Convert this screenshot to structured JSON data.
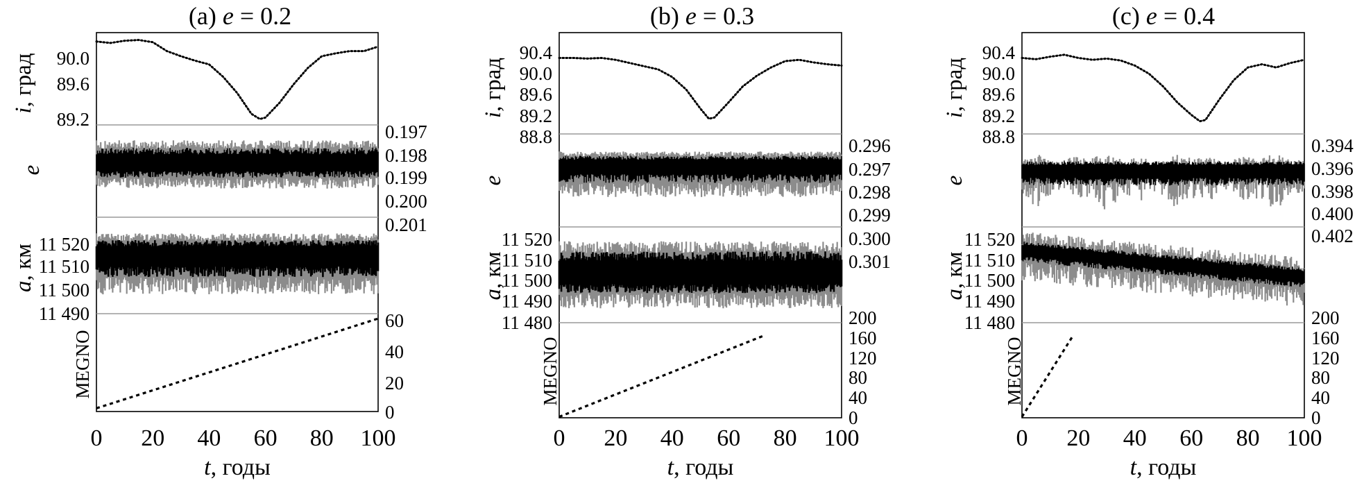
{
  "colors": {
    "ink": "#000000",
    "divider": "#9a9a9a",
    "light_trace": "#8c8c8c"
  },
  "chart_data": [
    {
      "type": "line",
      "title": "(a) e = 0.2",
      "title_parts": {
        "prefix": "(a) ",
        "var": "e",
        "suffix": " = 0.2"
      },
      "x": {
        "label_var": "t",
        "label_unit": ", годы",
        "ticks": [
          "0",
          "20",
          "40",
          "60",
          "80",
          "100"
        ],
        "range": [
          0,
          100
        ]
      },
      "panels": [
        {
          "id": "inclination",
          "ylabel_var": "i",
          "ylabel_unit": ", град",
          "tick_side": "left",
          "ticks": [
            "89.2",
            "89.6",
            "90.0"
          ],
          "ylim": [
            89.05,
            90.3
          ],
          "series": [
            {
              "style": "dotted-curve",
              "x": [
                0,
                5,
                10,
                15,
                20,
                25,
                30,
                35,
                40,
                45,
                50,
                55,
                58,
                60,
                65,
                70,
                75,
                80,
                85,
                90,
                95,
                100
              ],
              "y": [
                90.18,
                90.16,
                90.19,
                90.2,
                90.17,
                90.05,
                89.98,
                89.92,
                89.87,
                89.7,
                89.48,
                89.2,
                89.13,
                89.15,
                89.35,
                89.6,
                89.82,
                89.98,
                90.02,
                90.05,
                90.05,
                90.11
              ]
            }
          ]
        },
        {
          "id": "eccentricity",
          "ylabel_var": "e",
          "ylabel_unit": "",
          "tick_side": "right",
          "ticks": [
            "0.197",
            "0.198",
            "0.199",
            "0.200",
            "0.201"
          ],
          "ylim": [
            0.1969,
            0.2011
          ],
          "series": [
            {
              "style": "oscillation",
              "center": 0.1993,
              "upper": 0.2004,
              "lower": 0.1982,
              "period_years": 1.3
            }
          ]
        },
        {
          "id": "semimajor-axis",
          "ylabel_var": "a",
          "ylabel_unit": ", км",
          "tick_side": "left",
          "ticks": [
            "11 490",
            "11 500",
            "11 510",
            "11 520"
          ],
          "ylim": [
            11490,
            11520
          ],
          "series": [
            {
              "style": "band",
              "center": 11508,
              "upper": 11515,
              "lower": 11496
            }
          ]
        },
        {
          "id": "megno",
          "ylabel_var": "MEGNO",
          "ylabel_unit": "",
          "tick_side": "right",
          "ticks": [
            "0",
            "20",
            "40",
            "60"
          ],
          "ylim": [
            0,
            60
          ],
          "series": [
            {
              "style": "dashed",
              "x": [
                0,
                100
              ],
              "y": [
                2,
                57
              ]
            }
          ]
        }
      ]
    },
    {
      "type": "line",
      "title": "(b) e = 0.3",
      "title_parts": {
        "prefix": "(b) ",
        "var": "e",
        "suffix": " = 0.3"
      },
      "x": {
        "label_var": "t",
        "label_unit": ", годы",
        "ticks": [
          "0",
          "20",
          "40",
          "60",
          "80",
          "100"
        ],
        "range": [
          0,
          100
        ]
      },
      "panels": [
        {
          "id": "inclination",
          "ylabel_var": "i",
          "ylabel_unit": ", град",
          "tick_side": "left",
          "ticks": [
            "88.8",
            "89.2",
            "89.6",
            "90.0",
            "90.4"
          ],
          "ylim": [
            88.8,
            90.4
          ],
          "series": [
            {
              "style": "dotted-curve",
              "x": [
                0,
                5,
                10,
                15,
                20,
                25,
                30,
                35,
                40,
                45,
                50,
                53,
                55,
                60,
                65,
                70,
                75,
                80,
                85,
                90,
                95,
                100
              ],
              "y": [
                90.0,
                90.0,
                89.99,
                90.0,
                89.97,
                89.92,
                89.87,
                89.82,
                89.7,
                89.5,
                89.2,
                89.04,
                89.06,
                89.3,
                89.55,
                89.72,
                89.85,
                89.95,
                89.97,
                89.93,
                89.9,
                89.88
              ]
            }
          ]
        },
        {
          "id": "eccentricity",
          "ylabel_var": "e",
          "ylabel_unit": "",
          "tick_side": "right",
          "ticks": [
            "0.296",
            "0.297",
            "0.298",
            "0.299",
            "0.300",
            "0.301"
          ],
          "ylim": [
            0.2957,
            0.301
          ],
          "series": [
            {
              "style": "oscillation",
              "center": 0.2992,
              "upper": 0.3,
              "lower": 0.2974,
              "period_years": 1.1
            }
          ]
        },
        {
          "id": "semimajor-axis",
          "ylabel_var": "a",
          "ylabel_unit": ", км",
          "tick_side": "left",
          "ticks": [
            "11 480",
            "11 490",
            "11 500",
            "11 510",
            "11 520"
          ],
          "ylim": [
            11480,
            11520
          ],
          "series": [
            {
              "style": "band",
              "center": 11500,
              "upper": 11514,
              "lower": 11486
            }
          ]
        },
        {
          "id": "megno",
          "ylabel_var": "MEGNO",
          "ylabel_unit": "",
          "tick_side": "right",
          "ticks": [
            "0",
            "40",
            "80",
            "120",
            "160",
            "200"
          ],
          "ylim": [
            0,
            200
          ],
          "series": [
            {
              "style": "dashed",
              "x": [
                0,
                73
              ],
              "y": [
                2,
                174
              ]
            }
          ]
        }
      ]
    },
    {
      "type": "line",
      "title": "(c) e = 0.4",
      "title_parts": {
        "prefix": "(c) ",
        "var": "e",
        "suffix": " = 0.4"
      },
      "x": {
        "label_var": "t",
        "label_unit": ", годы",
        "ticks": [
          "0",
          "20",
          "40",
          "60",
          "80",
          "100"
        ],
        "range": [
          0,
          100
        ]
      },
      "panels": [
        {
          "id": "inclination",
          "ylabel_var": "i",
          "ylabel_unit": ", град",
          "tick_side": "left",
          "ticks": [
            "88.8",
            "89.2",
            "89.6",
            "90.0",
            "90.4"
          ],
          "ylim": [
            88.8,
            90.4
          ],
          "series": [
            {
              "style": "dotted-curve",
              "x": [
                0,
                5,
                10,
                15,
                20,
                25,
                30,
                35,
                40,
                45,
                50,
                55,
                60,
                63,
                65,
                70,
                75,
                80,
                85,
                90,
                95,
                100
              ],
              "y": [
                90.0,
                89.98,
                90.02,
                90.05,
                90.0,
                89.97,
                89.99,
                89.96,
                89.88,
                89.75,
                89.55,
                89.3,
                89.1,
                89.0,
                89.02,
                89.35,
                89.65,
                89.85,
                89.9,
                89.85,
                89.92,
                89.97
              ]
            }
          ]
        },
        {
          "id": "eccentricity",
          "ylabel_var": "e",
          "ylabel_unit": "",
          "tick_side": "right",
          "ticks": [
            "0.394",
            "0.396",
            "0.398",
            "0.400",
            "0.402"
          ],
          "ylim": [
            0.3935,
            0.4022
          ],
          "series": [
            {
              "style": "irregular",
              "center": 0.3988,
              "upper": 0.4,
              "lower": 0.3962
            }
          ]
        },
        {
          "id": "semimajor-axis",
          "ylabel_var": "a",
          "ylabel_unit": ", км",
          "tick_side": "left",
          "ticks": [
            "11 480",
            "11 490",
            "11 500",
            "11 510",
            "11 520"
          ],
          "ylim": [
            11480,
            11520
          ],
          "series": [
            {
              "style": "drift",
              "start": 11510,
              "end": 11499,
              "spread": 9
            }
          ]
        },
        {
          "id": "megno",
          "ylabel_var": "MEGNO",
          "ylabel_unit": "",
          "tick_side": "right",
          "ticks": [
            "0",
            "40",
            "80",
            "120",
            "160",
            "200"
          ],
          "ylim": [
            0,
            200
          ],
          "series": [
            {
              "style": "dashed",
              "x": [
                0,
                18
              ],
              "y": [
                2,
                172
              ]
            }
          ]
        }
      ]
    }
  ]
}
